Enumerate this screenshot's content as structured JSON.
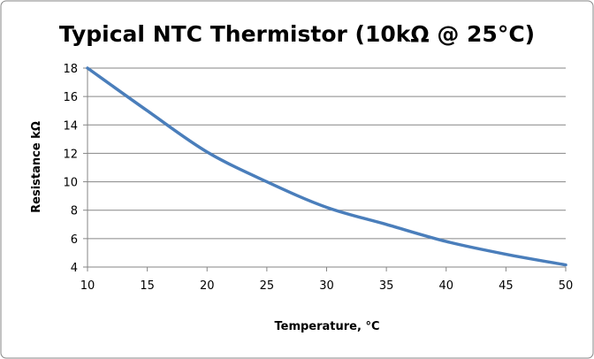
{
  "chart_data": {
    "type": "line",
    "title": "Typical NTC Thermistor (10kΩ @ 25°C)",
    "xlabel": "Temperature, °C",
    "ylabel": "Resistance kΩ",
    "xlim": [
      10,
      50
    ],
    "ylim": [
      4,
      18
    ],
    "xticks": [
      10,
      15,
      20,
      25,
      30,
      35,
      40,
      45,
      50
    ],
    "yticks": [
      4,
      6,
      8,
      10,
      12,
      14,
      16,
      18
    ],
    "grid": "horizontal",
    "legend": "none",
    "series": [
      {
        "color": "#4a7ebb",
        "x": [
          10,
          15,
          20,
          25,
          30,
          35,
          40,
          45,
          50
        ],
        "y": [
          18,
          15.0,
          12.1,
          10,
          8.2,
          7.0,
          5.8,
          4.9,
          4.15
        ]
      }
    ]
  }
}
